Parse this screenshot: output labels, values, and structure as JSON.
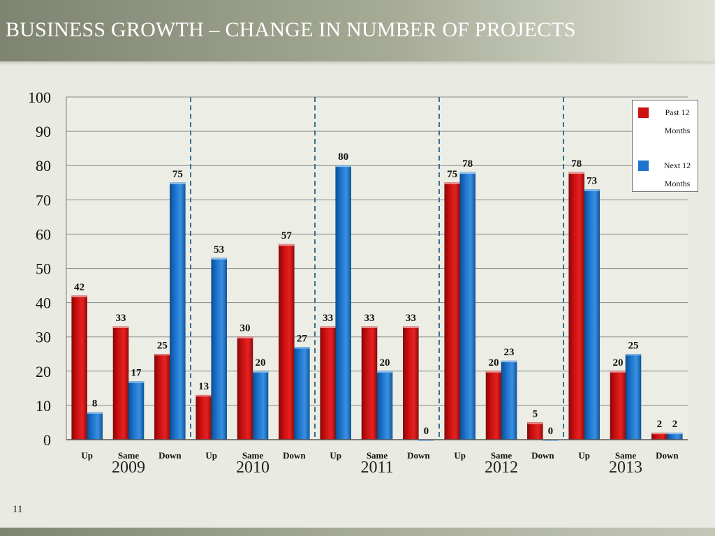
{
  "slide": {
    "title": "BUSINESS GROWTH – CHANGE IN NUMBER OF PROJECTS",
    "page_number": "11"
  },
  "colors": {
    "past": "#cc1111",
    "next": "#1c74cc",
    "divider": "#3a6f8f",
    "grid": "#8a8a8a"
  },
  "chart_data": {
    "type": "bar",
    "ylim": [
      0,
      100
    ],
    "yticks": [
      0,
      10,
      20,
      30,
      40,
      50,
      60,
      70,
      80,
      90,
      100
    ],
    "grid": true,
    "legend_position": "top-right",
    "categories": [
      "Up",
      "Same",
      "Down",
      "Up",
      "Same",
      "Down",
      "Up",
      "Same",
      "Down",
      "Up",
      "Same",
      "Down",
      "Up",
      "Same",
      "Down"
    ],
    "groups": [
      {
        "label": "2009",
        "categories": [
          "Up",
          "Same",
          "Down"
        ]
      },
      {
        "label": "2010",
        "categories": [
          "Up",
          "Same",
          "Down"
        ]
      },
      {
        "label": "2011",
        "categories": [
          "Up",
          "Same",
          "Down"
        ]
      },
      {
        "label": "2012",
        "categories": [
          "Up",
          "Same",
          "Down"
        ]
      },
      {
        "label": "2013",
        "categories": [
          "Up",
          "Same",
          "Down"
        ]
      }
    ],
    "series": [
      {
        "name": "Past 12 Months",
        "values": [
          42,
          33,
          25,
          13,
          30,
          57,
          33,
          33,
          33,
          75,
          20,
          5,
          78,
          20,
          2
        ]
      },
      {
        "name": "Next 12 Months",
        "values": [
          8,
          17,
          75,
          53,
          20,
          27,
          80,
          20,
          0,
          78,
          23,
          0,
          73,
          25,
          2
        ]
      }
    ]
  }
}
